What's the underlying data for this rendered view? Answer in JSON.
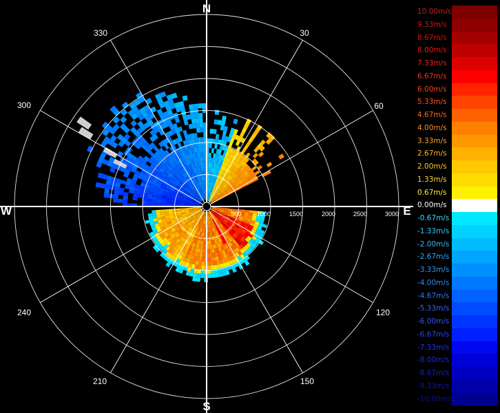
{
  "compass": {
    "north": "N",
    "south": "S",
    "east": "E",
    "west": "W"
  },
  "azimuth_labels": [
    "30",
    "60",
    "120",
    "150",
    "210",
    "240",
    "300",
    "330"
  ],
  "range_labels": [
    "1000",
    "1500",
    "2000",
    "2500",
    "3000"
  ],
  "partial_range_label": "500",
  "colors": {
    "background": "#000000",
    "grid": "#ffffff",
    "zero": "#ffffff"
  },
  "legend": [
    {
      "label": "10.00m/s",
      "color": "#7f0000",
      "text_color": "#c02020"
    },
    {
      "label": "9.33m/s",
      "color": "#8f0000",
      "text_color": "#d01818"
    },
    {
      "label": "8.67m/s",
      "color": "#a30000",
      "text_color": "#e01010"
    },
    {
      "label": "8.00m/s",
      "color": "#be0000",
      "text_color": "#ee1010"
    },
    {
      "label": "7.33m/s",
      "color": "#dd0000",
      "text_color": "#ff1a1a"
    },
    {
      "label": "6.67m/s",
      "color": "#ff0000",
      "text_color": "#ff2b2b"
    },
    {
      "label": "6.00m/s",
      "color": "#ff2400",
      "text_color": "#ff3d1a"
    },
    {
      "label": "5.33m/s",
      "color": "#ff4400",
      "text_color": "#ff5522"
    },
    {
      "label": "4.67m/s",
      "color": "#ff6200",
      "text_color": "#ff6a26"
    },
    {
      "label": "4.00m/s",
      "color": "#ff8000",
      "text_color": "#ff8a26"
    },
    {
      "label": "3.33m/s",
      "color": "#ff9800",
      "text_color": "#ffa028"
    },
    {
      "label": "2.67m/s",
      "color": "#ffb000",
      "text_color": "#ffb52a"
    },
    {
      "label": "2.00m/s",
      "color": "#ffc800",
      "text_color": "#ffcb2c"
    },
    {
      "label": "1.33m/s",
      "color": "#ffdc00",
      "text_color": "#ffdd2e"
    },
    {
      "label": "0.67m/s",
      "color": "#fff000",
      "text_color": "#ffee30"
    },
    {
      "label": "0.00m/s",
      "color": "#ffffff",
      "text_color": "#ffffff"
    },
    {
      "label": "-0.67m/s",
      "color": "#00e8ff",
      "text_color": "#33ddff"
    },
    {
      "label": "-1.33m/s",
      "color": "#00d2ff",
      "text_color": "#33ccff"
    },
    {
      "label": "-2.00m/s",
      "color": "#00bcff",
      "text_color": "#33bbff"
    },
    {
      "label": "-2.67m/s",
      "color": "#00a5ff",
      "text_color": "#33aaff"
    },
    {
      "label": "-3.33m/s",
      "color": "#008fff",
      "text_color": "#3399ff"
    },
    {
      "label": "-4.00m/s",
      "color": "#0078ff",
      "text_color": "#3388ff"
    },
    {
      "label": "-4.67m/s",
      "color": "#0062ff",
      "text_color": "#3377ff"
    },
    {
      "label": "-5.33m/s",
      "color": "#004bff",
      "text_color": "#3366ff"
    },
    {
      "label": "-6.00m/s",
      "color": "#0035ff",
      "text_color": "#3355ff"
    },
    {
      "label": "-6.67m/s",
      "color": "#001eff",
      "text_color": "#2a44ff"
    },
    {
      "label": "-7.33m/s",
      "color": "#0008f0",
      "text_color": "#2233ee"
    },
    {
      "label": "-8.00m/s",
      "color": "#0000d8",
      "text_color": "#1a2ad8"
    },
    {
      "label": "-8.67m/s",
      "color": "#0000c0",
      "text_color": "#1422c0"
    },
    {
      "label": "-9.33m/s",
      "color": "#0000a8",
      "text_color": "#1018a8"
    },
    {
      "label": "-10.00m/s",
      "color": "#000090",
      "text_color": "#0c1290"
    }
  ]
}
